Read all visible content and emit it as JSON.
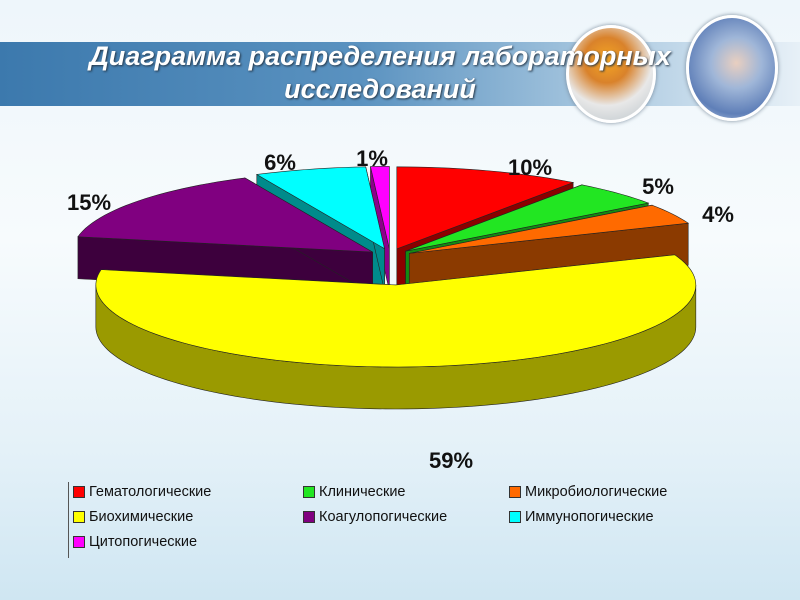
{
  "title": "Диаграмма распределения лабораторных исследований",
  "chart_data": {
    "type": "pie",
    "style": "3d-exploded",
    "title": "Диаграмма распределения лабораторных исследований",
    "legend_position": "bottom",
    "categories": [
      "Гематологические",
      "Клинические",
      "Микробиологические",
      "Биохимические",
      "Коагулопогические",
      "Иммунопогические",
      "Цитопогические"
    ],
    "values": [
      10,
      5,
      4,
      59,
      15,
      6,
      1
    ],
    "labels": [
      "10%",
      "5%",
      "4%",
      "59%",
      "15%",
      "6%",
      "1%"
    ],
    "colors": [
      "#ff0000",
      "#22e622",
      "#ff6a00",
      "#ffff00",
      "#800080",
      "#00ffff",
      "#ff00ff"
    ],
    "side_colors": [
      "#8b0000",
      "#138a13",
      "#8b3a00",
      "#9a9a00",
      "#3d003d",
      "#008b8b",
      "#8b008b"
    ]
  }
}
